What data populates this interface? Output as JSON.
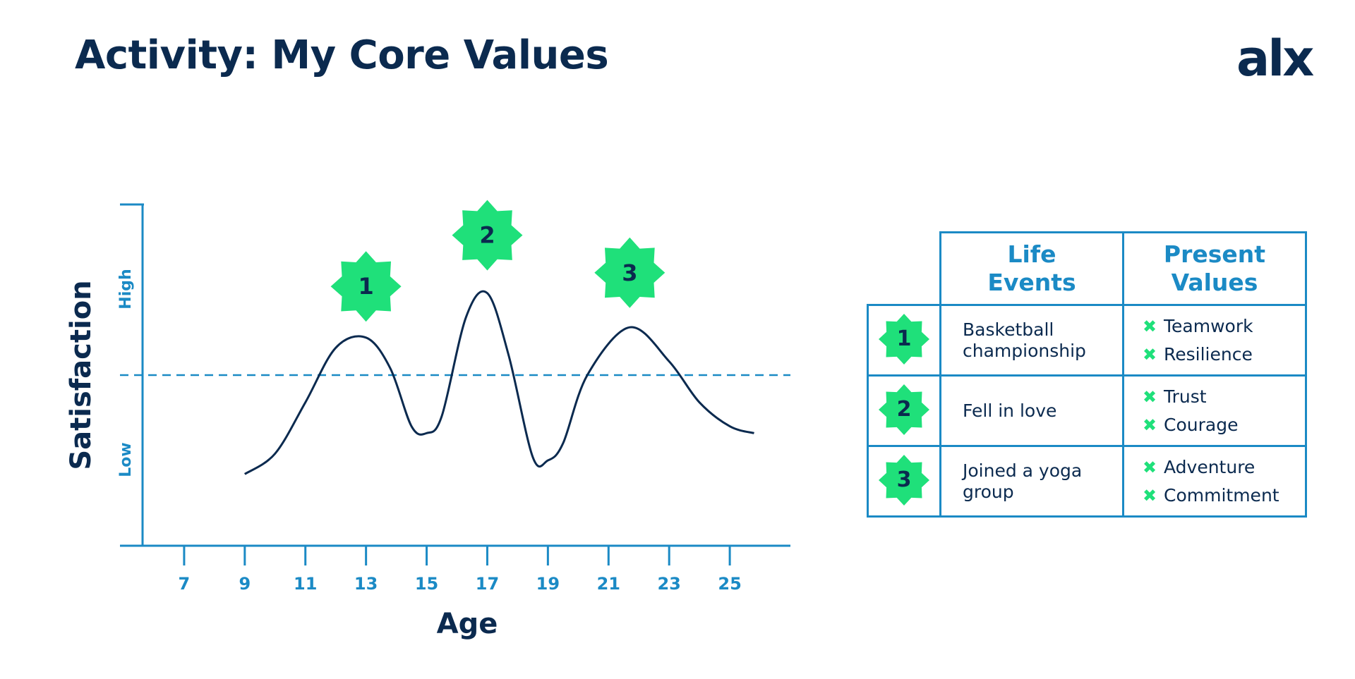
{
  "title": "Activity: My Core Values",
  "logo": {
    "text_a": "al",
    "text_b": "x"
  },
  "colors": {
    "navy": "#0b2a4f",
    "blue": "#1b8ac5",
    "green": "#1fe07a"
  },
  "chart_data": {
    "type": "line",
    "xlabel": "Age",
    "ylabel": "Satisfaction",
    "y_high_label": "High",
    "y_low_label": "Low",
    "x_ticks": [
      7,
      9,
      11,
      13,
      15,
      17,
      19,
      21,
      23,
      25
    ],
    "xlim": [
      5.0,
      27.0
    ],
    "ylim": [
      0,
      10
    ],
    "reference_line": 5,
    "series": [
      {
        "x": [
          9,
          10,
          11,
          12,
          13,
          13.8,
          14.5,
          15,
          15.5,
          16.3,
          17,
          17.7,
          18.5,
          19,
          19.5,
          20.3,
          21.7,
          23,
          24,
          25,
          25.8
        ],
        "y": [
          2.1,
          2.7,
          4.2,
          5.8,
          6.1,
          5.2,
          3.5,
          3.3,
          3.8,
          6.7,
          7.4,
          5.6,
          2.6,
          2.5,
          3.0,
          5.0,
          6.4,
          5.4,
          4.2,
          3.5,
          3.3
        ]
      }
    ],
    "markers": [
      {
        "label": "1",
        "x": 13,
        "y": 7.6
      },
      {
        "label": "2",
        "x": 17,
        "y": 9.1
      },
      {
        "label": "3",
        "x": 21.7,
        "y": 8.0
      }
    ]
  },
  "table": {
    "headers": [
      "Life\nEvents",
      "Present\nValues"
    ],
    "header_lines": [
      [
        "Life",
        "Events"
      ],
      [
        "Present",
        "Values"
      ]
    ],
    "rows": [
      {
        "num": "1",
        "event": "Basketball championship",
        "values": [
          "Teamwork",
          "Resilience"
        ]
      },
      {
        "num": "2",
        "event": "Fell in love",
        "values": [
          "Trust",
          "Courage"
        ]
      },
      {
        "num": "3",
        "event": "Joined a yoga group",
        "values": [
          "Adventure",
          "Commitment"
        ]
      }
    ]
  }
}
